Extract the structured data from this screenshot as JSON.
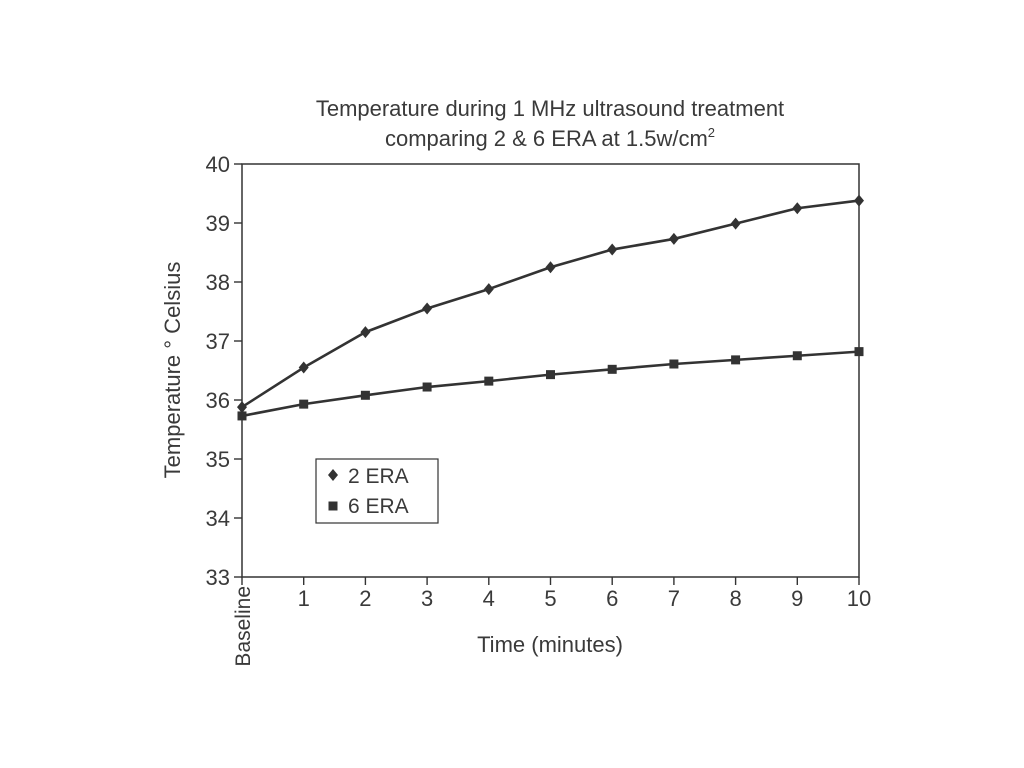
{
  "chart_data": {
    "type": "line",
    "title": "Temperature during 1 MHz ultrasound treatment",
    "subtitle_main": "comparing 2 & 6 ERA at 1.5w/cm",
    "subtitle_sup": "2",
    "xlabel": "Time (minutes)",
    "ylabel": "Temperature ° Celsius",
    "categories": [
      "Baseline",
      "1",
      "2",
      "3",
      "4",
      "5",
      "6",
      "7",
      "8",
      "9",
      "10"
    ],
    "ylim": [
      33,
      40
    ],
    "yticks": [
      "33",
      "34",
      "35",
      "36",
      "37",
      "38",
      "39",
      "40"
    ],
    "grid": false,
    "legend_position": "lower-left",
    "series": [
      {
        "name": "2 ERA",
        "marker": "diamond",
        "values": [
          35.88,
          36.55,
          37.15,
          37.55,
          37.88,
          38.25,
          38.55,
          38.73,
          38.99,
          39.25,
          39.38
        ]
      },
      {
        "name": "6 ERA",
        "marker": "square",
        "values": [
          35.73,
          35.93,
          36.08,
          36.22,
          36.32,
          36.43,
          36.52,
          36.61,
          36.68,
          36.75,
          36.82
        ]
      }
    ],
    "colors": {
      "line": "#333333",
      "text": "#3a3a3a"
    }
  }
}
